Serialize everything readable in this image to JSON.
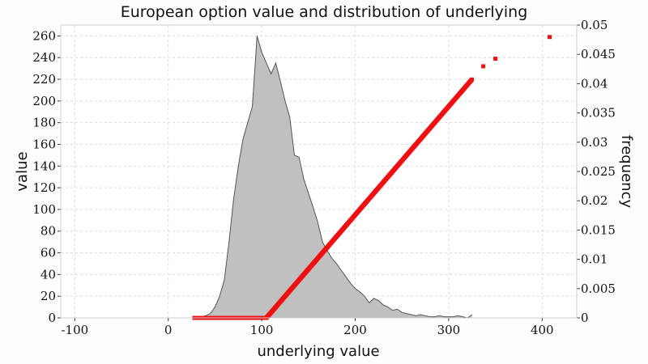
{
  "chart_data": {
    "type": "area",
    "title": "European option value and distribution of underlying",
    "xlabel": "underlying value",
    "ylabel": "value",
    "y2label": "frequency",
    "xlim": [
      -115,
      437
    ],
    "ylim": [
      0,
      270
    ],
    "y2lim": [
      0,
      0.05
    ],
    "x_ticks": [
      -100,
      0,
      100,
      200,
      300,
      400
    ],
    "x_tick_labels": [
      "-100",
      "0",
      "100",
      "200",
      "300",
      "400"
    ],
    "y_ticks": [
      0,
      20,
      40,
      60,
      80,
      100,
      120,
      140,
      160,
      180,
      200,
      220,
      240,
      260
    ],
    "y_tick_labels": [
      "0",
      "20",
      "40",
      "60",
      "80",
      "100",
      "120",
      "140",
      "160",
      "180",
      "200",
      "220",
      "240",
      "260"
    ],
    "y2_ticks": [
      0,
      0.005,
      0.01,
      0.015,
      0.02,
      0.025,
      0.03,
      0.035,
      0.04,
      0.045,
      0.05
    ],
    "y2_tick_labels": [
      "0",
      "0.005",
      "0.01",
      "0.015",
      "0.02",
      "0.025",
      "0.03",
      "0.035",
      "0.04",
      "0.045",
      "0.05"
    ],
    "grid": true,
    "colors": {
      "distribution_fill": "#c0c0c0",
      "distribution_line": "#555555",
      "option_value": "#ee1111",
      "grid": "#dcdcdc"
    },
    "distribution": {
      "x": [
        -90,
        -70,
        -50,
        -30,
        -10,
        10,
        30,
        40,
        45,
        50,
        55,
        60,
        65,
        70,
        75,
        80,
        85,
        90,
        95,
        100,
        105,
        110,
        115,
        120,
        125,
        130,
        135,
        140,
        145,
        150,
        155,
        160,
        165,
        170,
        175,
        180,
        185,
        190,
        195,
        200,
        205,
        210,
        215,
        220,
        225,
        230,
        235,
        240,
        245,
        250,
        255,
        260,
        265,
        270,
        275,
        280,
        285,
        290,
        295,
        300,
        305,
        310,
        315,
        320,
        325
      ],
      "y": [
        0,
        0,
        0,
        0,
        0,
        0,
        0,
        2,
        4,
        10,
        20,
        35,
        70,
        110,
        140,
        165,
        180,
        195,
        260,
        245,
        235,
        225,
        235,
        218,
        200,
        185,
        150,
        148,
        128,
        115,
        102,
        88,
        70,
        62,
        55,
        50,
        44,
        38,
        32,
        27,
        24,
        20,
        14,
        18,
        16,
        12,
        10,
        7,
        8,
        5,
        4,
        3,
        2,
        3,
        2,
        1,
        1,
        2,
        1,
        1,
        1,
        2,
        1,
        0,
        3
      ]
    },
    "option_value": {
      "strike": 105,
      "x_start": 28,
      "x_end": 325,
      "step": 0.8,
      "extra_points": [
        [
          337,
          232
        ],
        [
          350,
          239
        ],
        [
          408,
          259
        ]
      ]
    }
  }
}
